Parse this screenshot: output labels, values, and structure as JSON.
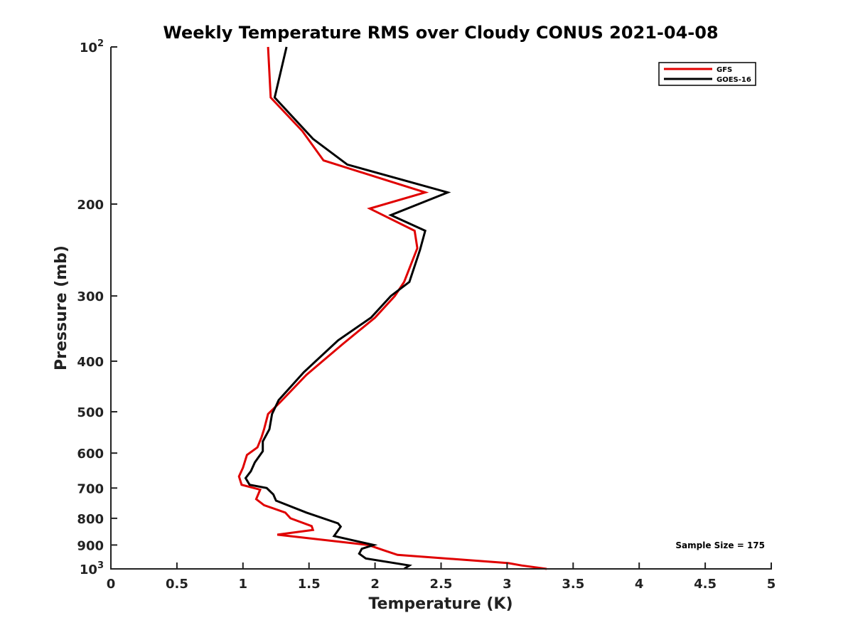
{
  "chart_data": {
    "type": "line",
    "title": "Weekly Temperature RMS over Cloudy CONUS 2021-04-08",
    "xlabel": "Temperature (K)",
    "ylabel": "Pressure (mb)",
    "xlim": [
      0,
      5
    ],
    "ylim": [
      100,
      1000
    ],
    "y_scale": "log",
    "y_reversed": true,
    "grid": false,
    "x_ticks": [
      {
        "value": 0,
        "label": "0"
      },
      {
        "value": 0.5,
        "label": "0.5"
      },
      {
        "value": 1,
        "label": "1"
      },
      {
        "value": 1.5,
        "label": "1.5"
      },
      {
        "value": 2,
        "label": "2"
      },
      {
        "value": 2.5,
        "label": "2.5"
      },
      {
        "value": 3,
        "label": "3"
      },
      {
        "value": 3.5,
        "label": "3.5"
      },
      {
        "value": 4,
        "label": "4"
      },
      {
        "value": 4.5,
        "label": "4.5"
      },
      {
        "value": 5,
        "label": "5"
      }
    ],
    "y_ticks": [
      {
        "value": 100,
        "base": "10",
        "exp": "2"
      },
      {
        "value": 200,
        "base": "200",
        "exp": ""
      },
      {
        "value": 300,
        "base": "300",
        "exp": ""
      },
      {
        "value": 400,
        "base": "400",
        "exp": ""
      },
      {
        "value": 500,
        "base": "500",
        "exp": ""
      },
      {
        "value": 600,
        "base": "600",
        "exp": ""
      },
      {
        "value": 700,
        "base": "700",
        "exp": ""
      },
      {
        "value": 800,
        "base": "800",
        "exp": ""
      },
      {
        "value": 900,
        "base": "900",
        "exp": ""
      },
      {
        "value": 1000,
        "base": "10",
        "exp": "3"
      }
    ],
    "legend_position": "top-right",
    "annotation": "Sample Size = 175",
    "series": [
      {
        "name": "GFS",
        "color": "#e00000",
        "points": [
          [
            1.19,
            100
          ],
          [
            1.21,
            125
          ],
          [
            1.45,
            145
          ],
          [
            1.61,
            165
          ],
          [
            2.38,
            190
          ],
          [
            1.96,
            204
          ],
          [
            2.3,
            225
          ],
          [
            2.32,
            243
          ],
          [
            2.22,
            282
          ],
          [
            2.15,
            300
          ],
          [
            2.0,
            330
          ],
          [
            1.76,
            370
          ],
          [
            1.48,
            425
          ],
          [
            1.28,
            480
          ],
          [
            1.19,
            505
          ],
          [
            1.16,
            540
          ],
          [
            1.14,
            560
          ],
          [
            1.11,
            585
          ],
          [
            1.03,
            605
          ],
          [
            1.0,
            640
          ],
          [
            0.97,
            665
          ],
          [
            0.99,
            690
          ],
          [
            1.13,
            705
          ],
          [
            1.1,
            735
          ],
          [
            1.16,
            755
          ],
          [
            1.32,
            780
          ],
          [
            1.36,
            800
          ],
          [
            1.52,
            828
          ],
          [
            1.53,
            842
          ],
          [
            1.26,
            860
          ],
          [
            1.95,
            900
          ],
          [
            2.06,
            920
          ],
          [
            2.17,
            940
          ],
          [
            3.01,
            975
          ],
          [
            3.11,
            985
          ],
          [
            3.3,
            1000
          ]
        ]
      },
      {
        "name": "GOES-16",
        "color": "#000000",
        "points": [
          [
            1.33,
            100
          ],
          [
            1.24,
            125
          ],
          [
            1.53,
            150
          ],
          [
            1.79,
            168
          ],
          [
            2.55,
            190
          ],
          [
            2.12,
            210
          ],
          [
            2.38,
            225
          ],
          [
            2.34,
            245
          ],
          [
            2.26,
            282
          ],
          [
            2.12,
            300
          ],
          [
            1.97,
            330
          ],
          [
            1.72,
            365
          ],
          [
            1.46,
            420
          ],
          [
            1.27,
            475
          ],
          [
            1.22,
            505
          ],
          [
            1.2,
            540
          ],
          [
            1.15,
            570
          ],
          [
            1.15,
            595
          ],
          [
            1.09,
            625
          ],
          [
            1.06,
            650
          ],
          [
            1.02,
            670
          ],
          [
            1.05,
            690
          ],
          [
            1.18,
            700
          ],
          [
            1.23,
            720
          ],
          [
            1.25,
            740
          ],
          [
            1.48,
            780
          ],
          [
            1.72,
            818
          ],
          [
            1.74,
            830
          ],
          [
            1.69,
            865
          ],
          [
            1.99,
            900
          ],
          [
            1.9,
            915
          ],
          [
            1.88,
            935
          ],
          [
            1.93,
            955
          ],
          [
            2.26,
            985
          ],
          [
            2.22,
            1000
          ]
        ]
      }
    ]
  }
}
